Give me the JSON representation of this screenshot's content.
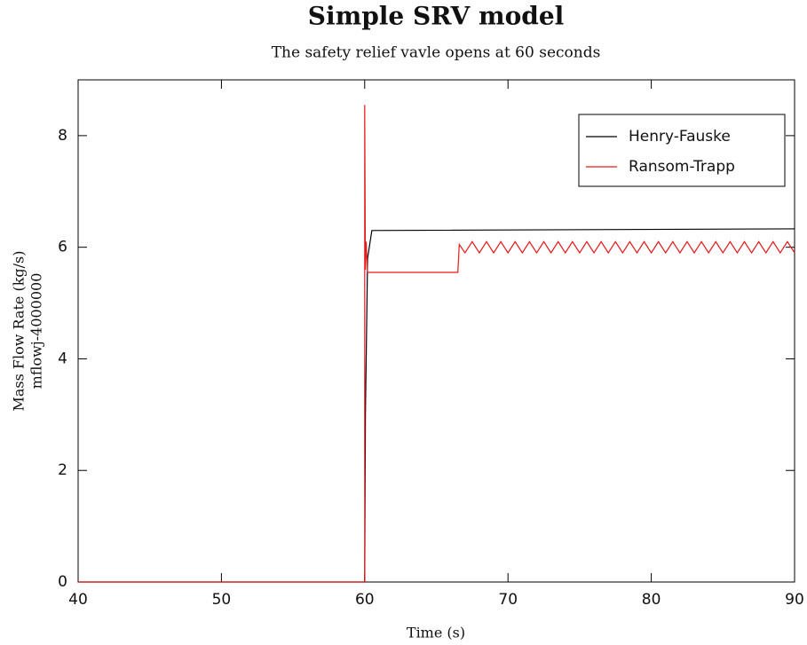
{
  "chart_data": {
    "type": "line",
    "title": "Simple SRV model",
    "subtitle": "The safety relief vavle opens at 60 seconds",
    "x_label": "Time (s)",
    "y_label": [
      "Mass Flow Rate (kg/s)",
      "mflowj-4000000"
    ],
    "xlim": [
      40,
      90
    ],
    "xticks": [
      40,
      50,
      60,
      70,
      80,
      90
    ],
    "ylim": [
      0,
      9
    ],
    "yticks": [
      0,
      2,
      4,
      6,
      8
    ],
    "legend": "upper right",
    "series": [
      {
        "name": "Henry-Fauske",
        "color": "#000000",
        "x": [
          40,
          60,
          60.05,
          60.2,
          60.5,
          90
        ],
        "values": [
          0,
          0,
          3,
          5.8,
          6.3,
          6.33
        ]
      },
      {
        "name": "Ransom-Trapp",
        "color": "#e41a1c",
        "x": [
          40,
          60,
          60,
          60.05,
          60.1,
          60.2,
          66.5,
          66.6,
          67,
          67.5,
          68,
          68.5,
          69,
          69.5,
          70,
          70.5,
          71,
          71.5,
          72,
          72.5,
          73,
          73.5,
          74,
          74.5,
          75,
          75.5,
          76,
          76.5,
          77,
          77.5,
          78,
          78.5,
          79,
          79.5,
          80,
          80.5,
          81,
          81.5,
          82,
          82.5,
          83,
          83.5,
          84,
          84.5,
          85,
          85.5,
          86,
          86.5,
          87,
          87.5,
          88,
          88.5,
          89,
          89.5,
          90
        ],
        "values": [
          0,
          0,
          8.55,
          5.6,
          6.1,
          5.55,
          5.55,
          6.05,
          5.9,
          6.1,
          5.9,
          6.1,
          5.9,
          6.1,
          5.9,
          6.1,
          5.9,
          6.1,
          5.9,
          6.1,
          5.9,
          6.1,
          5.9,
          6.1,
          5.9,
          6.1,
          5.9,
          6.1,
          5.9,
          6.1,
          5.9,
          6.1,
          5.9,
          6.1,
          5.9,
          6.1,
          5.9,
          6.1,
          5.9,
          6.1,
          5.9,
          6.1,
          5.9,
          6.1,
          5.9,
          6.1,
          5.9,
          6.1,
          5.9,
          6.1,
          5.9,
          6.1,
          5.9,
          6.1,
          5.9
        ]
      }
    ]
  }
}
